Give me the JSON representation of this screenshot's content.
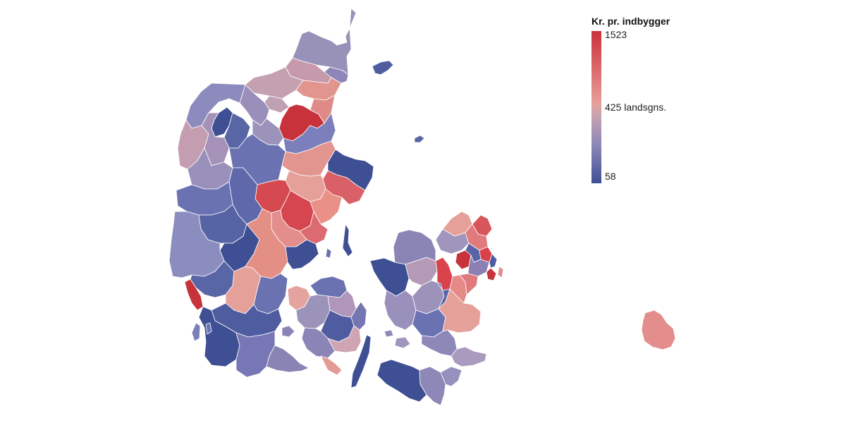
{
  "legend": {
    "title": "Kr. pr. indbygger",
    "max_label": "1523",
    "mid_label": "425 landsgns.",
    "min_label": "58",
    "max_value": 1523,
    "mid_value": 425,
    "min_value": 58
  },
  "colors": {
    "high": "#c8323a",
    "mid": "#c9a3b0",
    "low": "#3f4f94",
    "background": "#ffffff",
    "border": "#ffffff"
  }
}
